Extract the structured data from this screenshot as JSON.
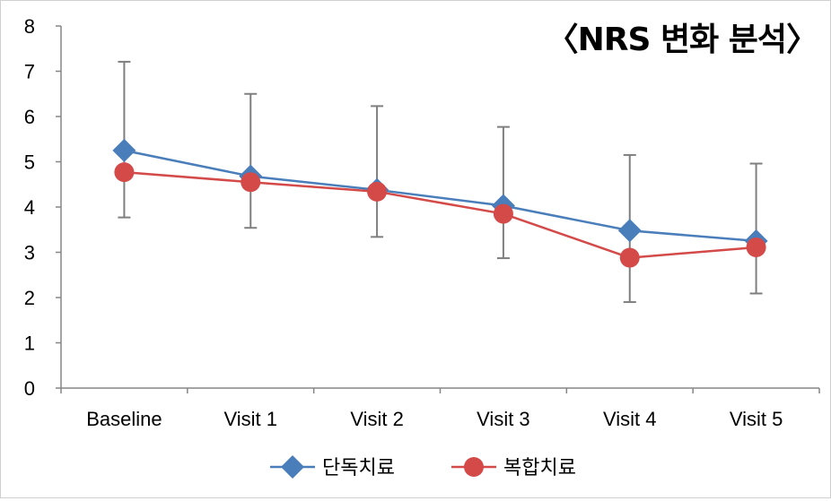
{
  "chart_data": {
    "type": "line",
    "title": "〈NRS 변화 분석〉",
    "categories": [
      "Baseline",
      "Visit 1",
      "Visit 2",
      "Visit 3",
      "Visit 4",
      "Visit 5"
    ],
    "y_ticks": [
      "0",
      "1",
      "2",
      "3",
      "4",
      "5",
      "6",
      "7",
      "8"
    ],
    "ylim": [
      0,
      8
    ],
    "grid": false,
    "legend_position": "bottom",
    "series": [
      {
        "name": "단독치료",
        "color": "#4a7ebb",
        "marker": "diamond",
        "values": [
          5.25,
          4.68,
          4.38,
          4.03,
          3.48,
          3.25
        ],
        "error_low": [],
        "error_high": []
      },
      {
        "name": "복합치료",
        "color": "#d34a49",
        "marker": "circle",
        "values": [
          4.77,
          4.55,
          4.34,
          3.85,
          2.88,
          3.11
        ],
        "error_low": [
          3.77,
          3.54,
          3.34,
          2.87,
          1.9,
          2.09
        ],
        "error_high": [
          7.21,
          6.5,
          6.23,
          5.77,
          5.15,
          4.96
        ]
      }
    ],
    "error_bar_color": "#7f7f7f"
  }
}
